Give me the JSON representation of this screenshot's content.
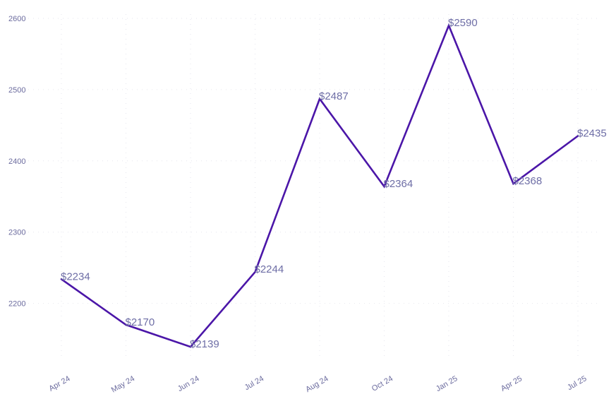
{
  "chart_data": {
    "type": "line",
    "categories": [
      "Apr 24",
      "May 24",
      "Jun 24",
      "Jul 24",
      "Aug 24",
      "Oct 24",
      "Jan 25",
      "Apr 25",
      "Jul 25"
    ],
    "series": [
      {
        "values": [
          2234,
          2170,
          2139,
          2244,
          2487,
          2364,
          2590,
          2368,
          2435
        ]
      }
    ],
    "data_labels": [
      "$2234",
      "$2170",
      "$2139",
      "$2244",
      "$2487",
      "$2364",
      "$2590",
      "$2368",
      "$2435"
    ],
    "y_ticks": [
      2200,
      2300,
      2400,
      2500,
      2600
    ],
    "ylim": [
      2100,
      2600
    ],
    "title": "",
    "xlabel": "",
    "ylabel": "",
    "grid": true,
    "legend": "none",
    "colors": {
      "line": "#4b16a8",
      "text": "#6b6b9e",
      "grid": "#e6e6ee"
    }
  }
}
